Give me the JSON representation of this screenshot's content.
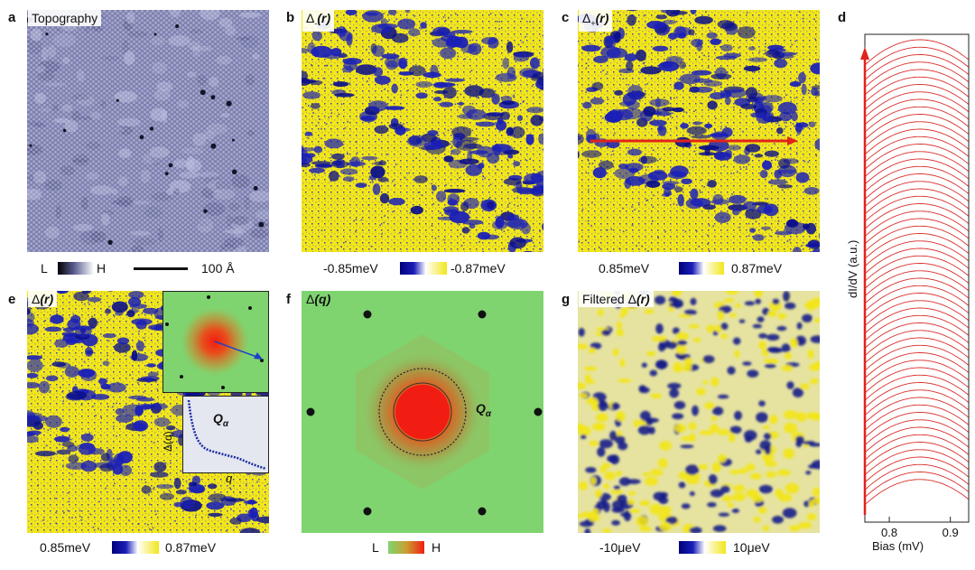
{
  "panels": {
    "a": {
      "letter": "a",
      "title": "Topography",
      "cbar_low": "L",
      "cbar_high": "H",
      "scale_label": "100 Å"
    },
    "b": {
      "letter": "b",
      "title_main": "Δ",
      "title_sub": "-",
      "title_arg": "(r)",
      "cbar_low": "-0.85meV",
      "cbar_high": "-0.87meV"
    },
    "c": {
      "letter": "c",
      "title_main": "Δ",
      "title_sub": "+",
      "title_arg": "(r)",
      "cbar_low": "0.85meV",
      "cbar_high": "0.87meV"
    },
    "d": {
      "letter": "d"
    },
    "e": {
      "letter": "e",
      "title_main": "Δ",
      "title_arg": "(r)",
      "inset_qlabel": "Q",
      "inset_qsub": "α",
      "inset_ylabel": "Δ(q)",
      "inset_xlabel": "q",
      "cbar_low": "0.85meV",
      "cbar_high": "0.87meV"
    },
    "f": {
      "letter": "f",
      "title_main": "Δ",
      "title_arg": "(q)",
      "q_label": "Q",
      "q_sub": "α",
      "cbar_low": "L",
      "cbar_high": "H"
    },
    "g": {
      "letter": "g",
      "title_prefix": "Filtered ",
      "title_main": "Δ",
      "title_arg": "(r)",
      "cbar_low": "-10μeV",
      "cbar_high": "10μeV"
    }
  },
  "chart_data": {
    "type": "line",
    "panel": "d",
    "xlabel": "Bias (mV)",
    "ylabel": "dI/dV (a.u.)",
    "xlim": [
      0.76,
      0.93
    ],
    "x_ticks": [
      0.8,
      0.9
    ],
    "x_tick_labels": [
      "0.8",
      "0.9"
    ],
    "curve_count": 60,
    "peak_bias_mV_approx": 0.85,
    "color": "#d9302c",
    "arrow": "vertical, pointing up along left edge"
  },
  "colors": {
    "yellow": "#f2e619",
    "blue": "#1a1fb8",
    "topo": "#7c7fae",
    "fft_green": "#7fd470",
    "fft_red": "#f21d12",
    "curve_red": "#d9302c"
  }
}
